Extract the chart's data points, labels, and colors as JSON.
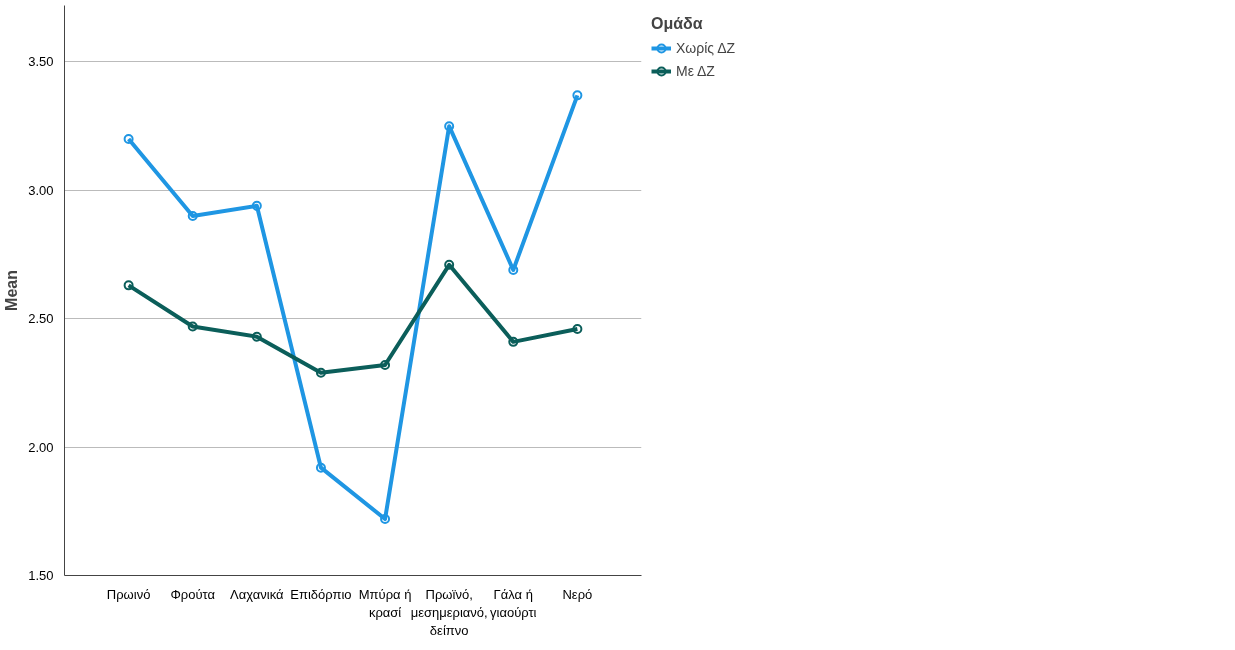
{
  "chart_data": {
    "type": "line",
    "ylabel": "Mean",
    "legend_title": "Ομάδα",
    "legend": "top right",
    "grid": "y",
    "marker": "circle",
    "line_style": "solid",
    "categories": [
      "Πρωινό",
      "Φρούτα",
      "Λαχανικά",
      "Επιδόρπιο",
      "Μπύρα ή κρασί",
      "Πρωϊνό, μεσημεριανό, δείπνο",
      "Γάλα ή γιαούρτι",
      "Νερό"
    ],
    "ylim": [
      1.5,
      3.72
    ],
    "yticks": [
      {
        "value": 1.5,
        "label": "1.50"
      },
      {
        "value": 2.0,
        "label": "2.00"
      },
      {
        "value": 2.5,
        "label": "2.50"
      },
      {
        "value": 3.0,
        "label": "3.00"
      },
      {
        "value": 3.5,
        "label": "3.50"
      }
    ],
    "series": [
      {
        "name": "Χωρίς ΔΖ",
        "color": "#1f96e3",
        "values": [
          3.2,
          2.9,
          2.94,
          1.92,
          1.72,
          3.25,
          2.69,
          3.37
        ]
      },
      {
        "name": "Με ΔΖ",
        "color": "#0b5e5a",
        "values": [
          2.63,
          2.47,
          2.43,
          2.29,
          2.32,
          2.71,
          2.41,
          2.46
        ]
      }
    ]
  }
}
